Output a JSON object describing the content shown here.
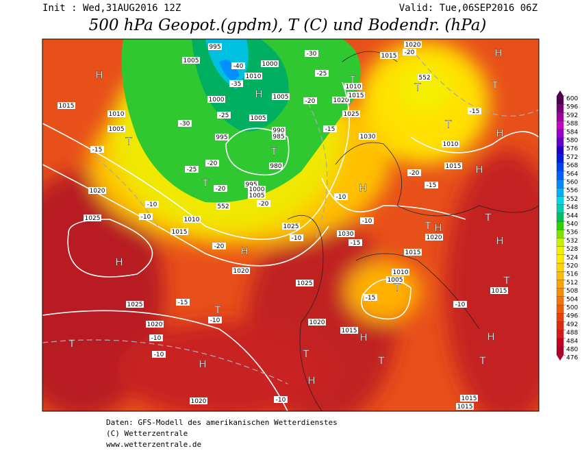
{
  "header": {
    "init": "Init : Wed,31AUG2016 12Z",
    "valid": "Valid: Tue,06SEP2016 06Z",
    "title": "500 hPa Geopot.(gpdm), T (C) und Bodendr. (hPa)"
  },
  "colorbar": {
    "ticks": [
      600,
      596,
      592,
      588,
      584,
      580,
      576,
      572,
      568,
      564,
      560,
      556,
      552,
      548,
      544,
      540,
      536,
      532,
      528,
      524,
      520,
      516,
      512,
      508,
      504,
      500,
      496,
      492,
      488,
      484,
      480,
      476
    ],
    "colors": [
      "#b00028",
      "#c80020",
      "#d81818",
      "#e02a10",
      "#e8400c",
      "#f05a0a",
      "#f47408",
      "#f88c06",
      "#fca404",
      "#ffbc00",
      "#ffd400",
      "#ffea00",
      "#f0f000",
      "#c8f000",
      "#80e000",
      "#30d000",
      "#00c060",
      "#00d0b0",
      "#00d8e8",
      "#00b0ff",
      "#0088ff",
      "#0060ff",
      "#0040f0",
      "#0020d8",
      "#2000c8",
      "#6000c8",
      "#9800d0",
      "#c800c8",
      "#a000a0",
      "#780078",
      "#500050"
    ]
  },
  "map": {
    "labels": [
      "H",
      "H",
      "T",
      "T",
      "T",
      "H",
      "T",
      "T",
      "H",
      "T",
      "H",
      "T",
      "H",
      "T",
      "H",
      "H",
      "H",
      "T",
      "T",
      "H",
      "T",
      "H",
      "H",
      "T",
      "T",
      "T",
      "H",
      "T",
      "H",
      "T",
      "1015",
      "1010",
      "1005",
      "1010",
      "1015",
      "1020",
      "1025",
      "1025",
      "1020",
      "1020",
      "1020",
      "1025",
      "1020",
      "1015",
      "1030",
      "1025",
      "1030",
      "1025",
      "1020",
      "1010",
      "1015",
      "1015",
      "1020",
      "1010",
      "1015",
      "1015",
      "1010",
      "1005",
      "1020",
      "1015",
      "1015",
      "1015",
      "1005",
      "1000",
      "1005",
      "1010",
      "1000",
      "1005",
      "990",
      "985",
      "980",
      "995",
      "995",
      "1000",
      "1005",
      "995",
      "-40",
      "-35",
      "-30",
      "-25",
      "-30",
      "-25",
      "-20",
      "-15",
      "-20",
      "-20",
      "-25",
      "-20",
      "-15",
      "-10",
      "-10",
      "-20",
      "-15",
      "-10",
      "-10",
      "-10",
      "-15",
      "-20",
      "-15",
      "-10",
      "-15",
      "-10",
      "-15",
      "-10",
      "-10",
      "-10",
      "-20",
      "552",
      "552"
    ]
  },
  "footer": {
    "lines": [
      "Daten: GFS-Modell des amerikanischen Wetterdienstes",
      "(C) Wetterzentrale",
      "www.wetterzentrale.de"
    ]
  }
}
